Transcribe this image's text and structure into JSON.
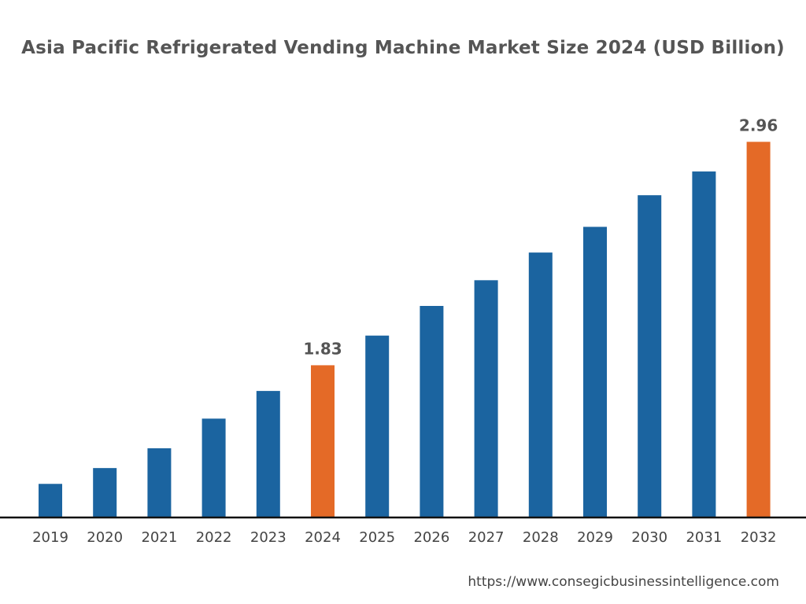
{
  "chart_data": {
    "type": "bar",
    "title": "Asia Pacific Refrigerated Vending Machine Market Size 2024 (USD Billion)",
    "categories": [
      "2019",
      "2020",
      "2021",
      "2022",
      "2023",
      "2024",
      "2025",
      "2026",
      "2027",
      "2028",
      "2029",
      "2030",
      "2031",
      "2032"
    ],
    "values": [
      1.23,
      1.31,
      1.41,
      1.56,
      1.7,
      1.83,
      1.98,
      2.13,
      2.26,
      2.4,
      2.53,
      2.69,
      2.81,
      2.96
    ],
    "data_labels": {
      "2024": "1.83",
      "2032": "2.96"
    },
    "highlight_categories": [
      "2024",
      "2032"
    ],
    "colors": {
      "default": "#1b64a0",
      "highlight": "#e46a27"
    },
    "ylim": [
      1.06,
      3.2
    ],
    "xlabel": "",
    "ylabel": "",
    "grid": false,
    "legend": "none"
  },
  "source": "https://www.consegicbusinessintelligence.com"
}
